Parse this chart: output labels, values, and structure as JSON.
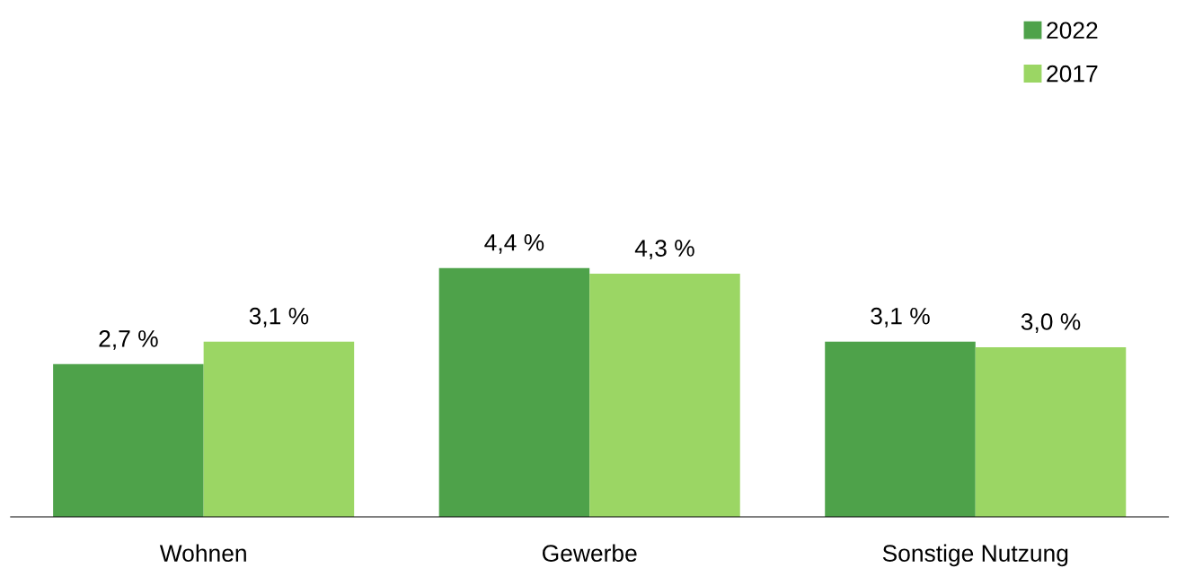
{
  "chart_data": {
    "type": "bar",
    "categories": [
      "Wohnen",
      "Gewerbe",
      "Sonstige Nutzung"
    ],
    "series": [
      {
        "name": "2022",
        "color": "#4ea24a",
        "values": [
          2.7,
          4.4,
          3.1
        ],
        "value_labels": [
          "2,7 %",
          "4,4 %",
          "3,1 %"
        ]
      },
      {
        "name": "2017",
        "color": "#9bd664",
        "values": [
          3.1,
          4.3,
          3.0
        ],
        "value_labels": [
          "3,1 %",
          "4,3 %",
          "3,0 %"
        ]
      }
    ],
    "tick_labels": "x",
    "grid": false,
    "legend": "top right"
  }
}
